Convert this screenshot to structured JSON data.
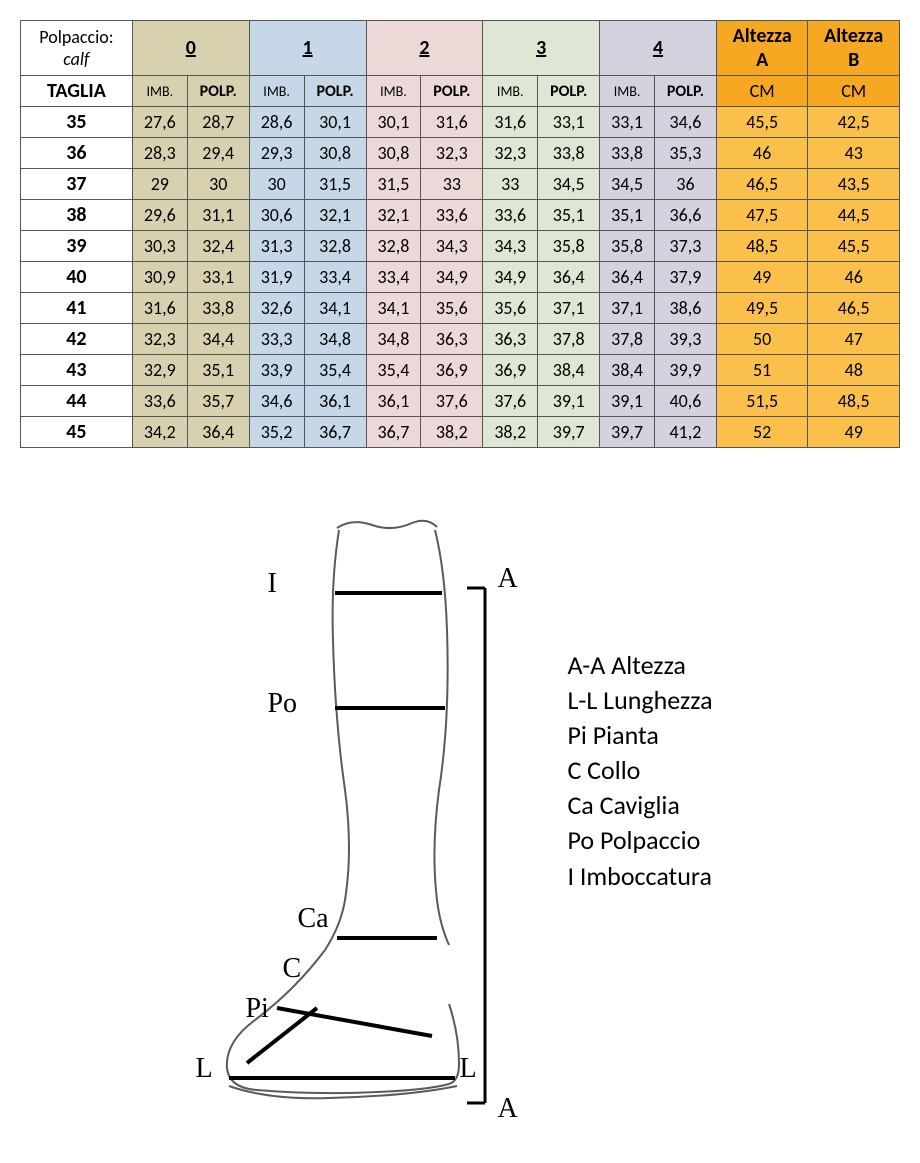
{
  "table": {
    "header": {
      "polpaccio_it": "Polpaccio:",
      "polpaccio_en": "calf",
      "sizes": [
        "0",
        "1",
        "2",
        "3",
        "4"
      ],
      "altezza_a": "Altezza A",
      "altezza_b": "Altezza B",
      "taglia": "TAGLIA",
      "imb": "IMB.",
      "polp": "POLP.",
      "cm": "CM"
    },
    "colors": {
      "size_bg": [
        "#d8d1b0",
        "#c6d7e8",
        "#ecd8d6",
        "#dde7d4",
        "#d5d2e0"
      ],
      "altezza_hdr_bg": "#f7a823",
      "altezza_cell_bg": "#fbbf4c",
      "imb_shade_factor": 1.0,
      "polp_shade_factor": 1.0
    },
    "rows": [
      {
        "taglia": "35",
        "v": [
          [
            "27,6",
            "28,7"
          ],
          [
            "28,6",
            "30,1"
          ],
          [
            "30,1",
            "31,6"
          ],
          [
            "31,6",
            "33,1"
          ],
          [
            "33,1",
            "34,6"
          ]
        ],
        "a": "45,5",
        "b": "42,5"
      },
      {
        "taglia": "36",
        "v": [
          [
            "28,3",
            "29,4"
          ],
          [
            "29,3",
            "30,8"
          ],
          [
            "30,8",
            "32,3"
          ],
          [
            "32,3",
            "33,8"
          ],
          [
            "33,8",
            "35,3"
          ]
        ],
        "a": "46",
        "b": "43"
      },
      {
        "taglia": "37",
        "v": [
          [
            "29",
            "30"
          ],
          [
            "30",
            "31,5"
          ],
          [
            "31,5",
            "33"
          ],
          [
            "33",
            "34,5"
          ],
          [
            "34,5",
            "36"
          ]
        ],
        "a": "46,5",
        "b": "43,5"
      },
      {
        "taglia": "38",
        "v": [
          [
            "29,6",
            "31,1"
          ],
          [
            "30,6",
            "32,1"
          ],
          [
            "32,1",
            "33,6"
          ],
          [
            "33,6",
            "35,1"
          ],
          [
            "35,1",
            "36,6"
          ]
        ],
        "a": "47,5",
        "b": "44,5"
      },
      {
        "taglia": "39",
        "v": [
          [
            "30,3",
            "32,4"
          ],
          [
            "31,3",
            "32,8"
          ],
          [
            "32,8",
            "34,3"
          ],
          [
            "34,3",
            "35,8"
          ],
          [
            "35,8",
            "37,3"
          ]
        ],
        "a": "48,5",
        "b": "45,5"
      },
      {
        "taglia": "40",
        "v": [
          [
            "30,9",
            "33,1"
          ],
          [
            "31,9",
            "33,4"
          ],
          [
            "33,4",
            "34,9"
          ],
          [
            "34,9",
            "36,4"
          ],
          [
            "36,4",
            "37,9"
          ]
        ],
        "a": "49",
        "b": "46"
      },
      {
        "taglia": "41",
        "v": [
          [
            "31,6",
            "33,8"
          ],
          [
            "32,6",
            "34,1"
          ],
          [
            "34,1",
            "35,6"
          ],
          [
            "35,6",
            "37,1"
          ],
          [
            "37,1",
            "38,6"
          ]
        ],
        "a": "49,5",
        "b": "46,5"
      },
      {
        "taglia": "42",
        "v": [
          [
            "32,3",
            "34,4"
          ],
          [
            "33,3",
            "34,8"
          ],
          [
            "34,8",
            "36,3"
          ],
          [
            "36,3",
            "37,8"
          ],
          [
            "37,8",
            "39,3"
          ]
        ],
        "a": "50",
        "b": "47"
      },
      {
        "taglia": "43",
        "v": [
          [
            "32,9",
            "35,1"
          ],
          [
            "33,9",
            "35,4"
          ],
          [
            "35,4",
            "36,9"
          ],
          [
            "36,9",
            "38,4"
          ],
          [
            "38,4",
            "39,9"
          ]
        ],
        "a": "51",
        "b": "48"
      },
      {
        "taglia": "44",
        "v": [
          [
            "33,6",
            "35,7"
          ],
          [
            "34,6",
            "36,1"
          ],
          [
            "36,1",
            "37,6"
          ],
          [
            "37,6",
            "39,1"
          ],
          [
            "39,1",
            "40,6"
          ]
        ],
        "a": "51,5",
        "b": "48,5"
      },
      {
        "taglia": "45",
        "v": [
          [
            "34,2",
            "36,4"
          ],
          [
            "35,2",
            "36,7"
          ],
          [
            "36,7",
            "38,2"
          ],
          [
            "38,2",
            "39,7"
          ],
          [
            "39,7",
            "41,2"
          ]
        ],
        "a": "52",
        "b": "49"
      }
    ]
  },
  "diagram": {
    "labels": {
      "I": "I",
      "Po": "Po",
      "Ca": "Ca",
      "C": "C",
      "Pi": "Pi",
      "L": "L",
      "A": "A"
    },
    "legend": [
      "A-A Altezza",
      "L-L Lunghezza",
      "Pi Pianta",
      "C Collo",
      "Ca Caviglia",
      "Po Polpaccio",
      "I Imboccatura"
    ],
    "stroke_main": "#000000",
    "stroke_outline": "#5a5a5a",
    "stroke_width_main": 4,
    "stroke_width_outline": 2
  }
}
